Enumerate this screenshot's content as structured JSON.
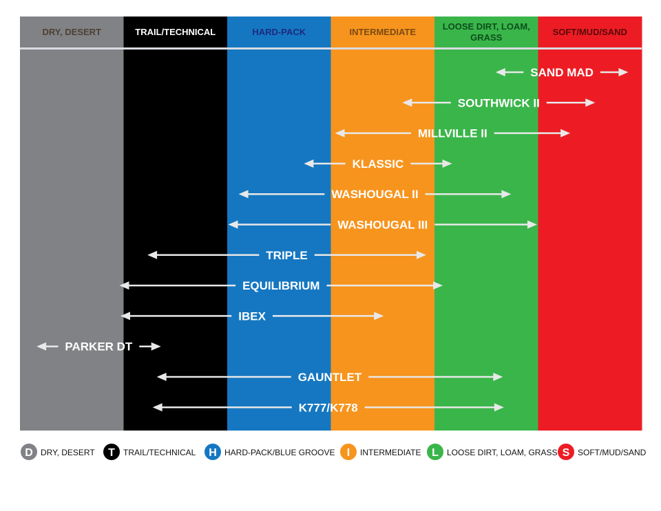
{
  "columns": [
    {
      "label_lines": [
        "DRY, DESERT"
      ],
      "color": "#808285",
      "text_color": "#4d3f33"
    },
    {
      "label_lines": [
        "TRAIL/TECHNICAL"
      ],
      "color": "#000000",
      "text_color": "#ffffff"
    },
    {
      "label_lines": [
        "HARD-PACK"
      ],
      "color": "#1577c1",
      "text_color": "#1c2a80"
    },
    {
      "label_lines": [
        "INTERMEDIATE"
      ],
      "color": "#f7941d",
      "text_color": "#7a4a12"
    },
    {
      "label_lines": [
        "LOOSE DIRT, LOAM,",
        "GRASS"
      ],
      "color": "#3ab54a",
      "text_color": "#0b4f1c"
    },
    {
      "label_lines": [
        "SOFT/MUD/SAND"
      ],
      "color": "#ed1c24",
      "text_color": "#5a0808"
    }
  ],
  "tires": [
    {
      "label": "SAND MAD",
      "from": 4.59,
      "to": 5.87
    },
    {
      "label": "SOUTHWICK II",
      "from": 3.69,
      "to": 5.55
    },
    {
      "label": "MILLVILLE II",
      "from": 3.04,
      "to": 5.31
    },
    {
      "label": "KLASSIC",
      "from": 2.74,
      "to": 4.17
    },
    {
      "label": "WASHOUGAL II",
      "from": 2.11,
      "to": 4.74
    },
    {
      "label": "WASHOUGAL III",
      "from": 2.01,
      "to": 4.99
    },
    {
      "label": "TRIPLE",
      "from": 1.23,
      "to": 3.92
    },
    {
      "label": "EQUILIBRIUM",
      "from": 0.96,
      "to": 4.08
    },
    {
      "label": "IBEX",
      "from": 0.97,
      "to": 3.51
    },
    {
      "label": "PARKER DT",
      "from": 0.16,
      "to": 1.36
    },
    {
      "label": "GAUNTLET",
      "from": 1.32,
      "to": 4.66
    },
    {
      "label": "K777/K778",
      "from": 1.28,
      "to": 4.67
    }
  ],
  "legend": [
    {
      "letter": "D",
      "label": "DRY, DESERT",
      "color": "#808285"
    },
    {
      "letter": "T",
      "label": "TRAIL/TECHNICAL",
      "color": "#000000"
    },
    {
      "letter": "H",
      "label": "HARD-PACK/BLUE GROOVE",
      "color": "#1577c1"
    },
    {
      "letter": "I",
      "label": "INTERMEDIATE",
      "color": "#f7941d"
    },
    {
      "letter": "L",
      "label": "LOOSE DIRT, LOAM, GRASS",
      "color": "#3ab54a"
    },
    {
      "letter": "S",
      "label": "SOFT/MUD/SAND",
      "color": "#ed1c24"
    }
  ]
}
